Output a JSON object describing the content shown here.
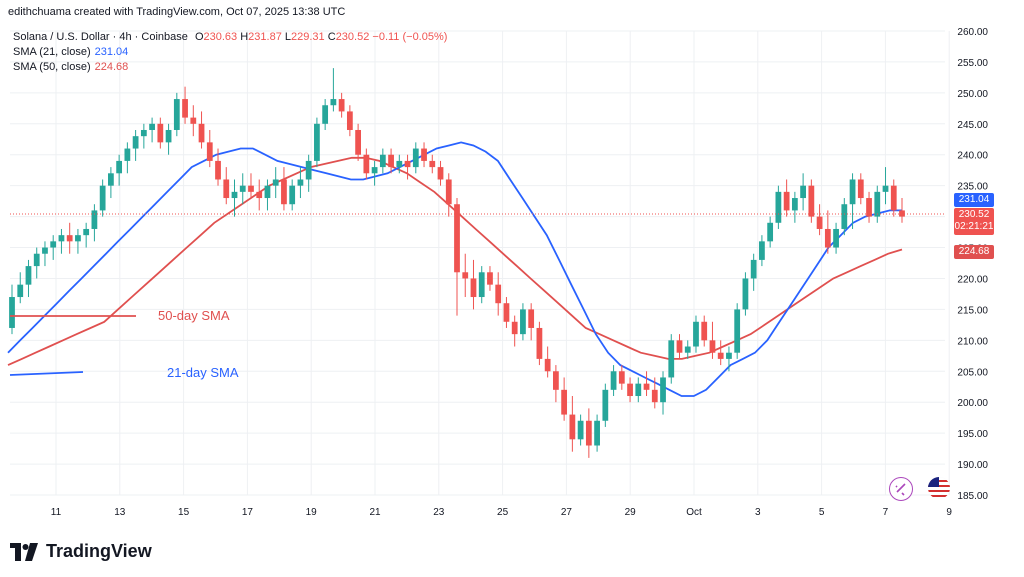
{
  "header": {
    "attribution": "edithchuama created with TradingView.com, Oct 07, 2025 13:38 UTC",
    "symbol": "Solana / U.S. Dollar · 4h · Coinbase",
    "ohlc": {
      "o_label": "O",
      "o": "230.63",
      "h_label": "H",
      "h": "231.87",
      "l_label": "L",
      "l": "229.31",
      "c_label": "C",
      "c": "230.52",
      "change": "−0.11 (−0.05%)"
    },
    "sma21_label": "SMA (21, close)",
    "sma21_value": "231.04",
    "sma50_label": "SMA (50, close)",
    "sma50_value": "224.68"
  },
  "annotations": {
    "sma50": "50-day SMA",
    "sma21": "21-day SMA"
  },
  "price_badges": {
    "sma21": "231.04",
    "last": "230.52",
    "countdown": "02:21:21",
    "sma50": "224.68"
  },
  "branding": {
    "logo_text": "TradingView"
  },
  "colors": {
    "up": "#26a69a",
    "down": "#ef5350",
    "sma21": "#2962ff",
    "sma50": "#e0504f",
    "badge_dark": "#131722",
    "text": "#131722",
    "grid": "#eef0f3",
    "axis_text": "#131722"
  },
  "icons": [
    "tradingview-logo-icon",
    "snapshot-sparkle-icon",
    "us-flag-icon"
  ],
  "chart_data": {
    "type": "candlestick",
    "title": "Solana / U.S. Dollar · 4h · Coinbase",
    "x_ticks": [
      "11",
      "13",
      "15",
      "17",
      "19",
      "21",
      "23",
      "25",
      "27",
      "29",
      "Oct",
      "3",
      "5",
      "7",
      "9"
    ],
    "y_ticks": [
      "260.00",
      "255.00",
      "250.00",
      "245.00",
      "240.00",
      "235.00",
      "230.00",
      "225.00",
      "220.00",
      "215.00",
      "210.00",
      "205.00",
      "200.00",
      "195.00",
      "190.00",
      "185.00"
    ],
    "ylim": [
      185,
      260
    ],
    "grid": true,
    "candles_ohlc": [
      [
        212,
        219,
        211,
        217
      ],
      [
        217,
        221,
        216,
        219
      ],
      [
        219,
        223,
        217,
        222
      ],
      [
        222,
        225,
        220,
        224
      ],
      [
        224,
        226,
        222,
        225
      ],
      [
        225,
        227,
        223,
        226
      ],
      [
        226,
        228,
        224,
        227
      ],
      [
        227,
        229,
        224,
        226
      ],
      [
        226,
        228,
        224,
        227
      ],
      [
        227,
        229,
        225,
        228
      ],
      [
        228,
        232,
        226,
        231
      ],
      [
        231,
        236,
        230,
        235
      ],
      [
        235,
        238,
        233,
        237
      ],
      [
        237,
        240,
        235,
        239
      ],
      [
        239,
        242,
        237,
        241
      ],
      [
        241,
        244,
        239,
        243
      ],
      [
        243,
        245,
        241,
        244
      ],
      [
        244,
        246,
        242,
        245
      ],
      [
        245,
        246,
        241,
        242
      ],
      [
        242,
        245,
        240,
        244
      ],
      [
        244,
        250,
        243,
        249
      ],
      [
        249,
        251,
        245,
        246
      ],
      [
        246,
        248,
        243,
        245
      ],
      [
        245,
        247,
        241,
        242
      ],
      [
        242,
        244,
        238,
        239
      ],
      [
        239,
        241,
        235,
        236
      ],
      [
        236,
        238,
        232,
        233
      ],
      [
        233,
        236,
        230,
        234
      ],
      [
        234,
        237,
        232,
        235
      ],
      [
        235,
        237,
        233,
        234
      ],
      [
        234,
        236,
        231,
        233
      ],
      [
        233,
        236,
        231,
        235
      ],
      [
        235,
        238,
        233,
        236
      ],
      [
        236,
        238,
        231,
        232
      ],
      [
        232,
        236,
        231,
        235
      ],
      [
        235,
        238,
        233,
        236
      ],
      [
        236,
        240,
        234,
        239
      ],
      [
        239,
        246,
        238,
        245
      ],
      [
        245,
        249,
        244,
        248
      ],
      [
        248,
        254,
        247,
        249
      ],
      [
        249,
        250,
        246,
        247
      ],
      [
        247,
        248,
        243,
        244
      ],
      [
        244,
        245,
        239,
        240
      ],
      [
        240,
        241,
        236,
        237
      ],
      [
        237,
        239,
        235,
        238
      ],
      [
        238,
        241,
        237,
        240
      ],
      [
        240,
        241,
        237,
        238
      ],
      [
        238,
        240,
        237,
        239
      ],
      [
        239,
        240,
        236,
        238
      ],
      [
        238,
        242,
        237,
        241
      ],
      [
        241,
        242,
        238,
        239
      ],
      [
        239,
        240,
        237,
        238
      ],
      [
        238,
        239,
        235,
        236
      ],
      [
        236,
        237,
        230,
        232
      ],
      [
        232,
        233,
        214,
        221
      ],
      [
        221,
        224,
        217,
        220
      ],
      [
        220,
        223,
        215,
        217
      ],
      [
        217,
        222,
        216,
        221
      ],
      [
        221,
        222,
        218,
        219
      ],
      [
        219,
        221,
        214,
        216
      ],
      [
        216,
        217,
        212,
        213
      ],
      [
        213,
        214,
        209,
        211
      ],
      [
        211,
        216,
        210,
        215
      ],
      [
        215,
        216,
        210,
        212
      ],
      [
        212,
        213,
        206,
        207
      ],
      [
        207,
        209,
        204,
        205
      ],
      [
        205,
        206,
        200,
        202
      ],
      [
        202,
        204,
        197,
        198
      ],
      [
        198,
        201,
        192,
        194
      ],
      [
        194,
        198,
        193,
        197
      ],
      [
        197,
        199,
        191,
        193
      ],
      [
        193,
        198,
        192,
        197
      ],
      [
        197,
        203,
        196,
        202
      ],
      [
        202,
        206,
        201,
        205
      ],
      [
        205,
        206,
        202,
        203
      ],
      [
        203,
        204,
        200,
        201
      ],
      [
        201,
        204,
        200,
        203
      ],
      [
        203,
        205,
        201,
        202
      ],
      [
        202,
        204,
        199,
        200
      ],
      [
        200,
        205,
        198,
        204
      ],
      [
        204,
        211,
        203,
        210
      ],
      [
        210,
        211,
        207,
        208
      ],
      [
        208,
        210,
        207,
        209
      ],
      [
        209,
        214,
        208,
        213
      ],
      [
        213,
        214,
        209,
        210
      ],
      [
        210,
        213,
        207,
        208
      ],
      [
        208,
        210,
        206,
        207
      ],
      [
        207,
        209,
        205,
        208
      ],
      [
        208,
        216,
        207,
        215
      ],
      [
        215,
        221,
        214,
        220
      ],
      [
        220,
        224,
        218,
        223
      ],
      [
        223,
        227,
        222,
        226
      ],
      [
        226,
        230,
        225,
        229
      ],
      [
        229,
        235,
        228,
        234
      ],
      [
        234,
        236,
        230,
        231
      ],
      [
        231,
        234,
        229,
        233
      ],
      [
        233,
        237,
        231,
        235
      ],
      [
        235,
        236,
        229,
        230
      ],
      [
        230,
        232,
        227,
        228
      ],
      [
        228,
        231,
        224,
        225
      ],
      [
        225,
        229,
        224,
        228
      ],
      [
        228,
        233,
        227,
        232
      ],
      [
        232,
        237,
        228,
        236
      ],
      [
        236,
        237,
        232,
        233
      ],
      [
        233,
        234,
        229,
        230
      ],
      [
        230,
        235,
        229,
        234
      ],
      [
        234,
        238,
        232,
        235
      ],
      [
        235,
        236,
        230,
        231
      ],
      [
        231,
        233,
        229,
        230
      ]
    ],
    "sma21_values": [
      208,
      210,
      212,
      214,
      216,
      218,
      220,
      222,
      224,
      226,
      228,
      230,
      232,
      234,
      236,
      238,
      239,
      240,
      240.5,
      241,
      241,
      240,
      239,
      238.5,
      238,
      237.5,
      237,
      236.5,
      236,
      236,
      236.5,
      237,
      238,
      239,
      240,
      241,
      241.5,
      242,
      241.5,
      240.5,
      239,
      236,
      233,
      230,
      227,
      223,
      219,
      215,
      211,
      208,
      206,
      205,
      204,
      203,
      202,
      201,
      201,
      202,
      204,
      206,
      207,
      208,
      210,
      213,
      216,
      219,
      222,
      225,
      227,
      229,
      230,
      230.5,
      231,
      231
    ],
    "sma50_values": [
      206,
      207,
      208,
      209,
      210,
      211,
      212,
      213,
      215,
      217,
      219,
      221,
      223,
      225,
      227,
      229,
      230.5,
      232,
      233.5,
      235,
      236,
      237,
      238,
      238.5,
      239,
      239.5,
      239.5,
      239,
      238,
      237,
      235.5,
      234,
      232,
      230,
      228,
      226,
      224,
      222,
      220,
      218,
      216,
      214,
      212,
      211,
      210,
      209,
      208,
      207.5,
      207,
      207,
      207.5,
      208,
      209,
      210,
      211,
      212.5,
      214,
      215.5,
      217,
      218.5,
      220,
      221,
      222,
      223,
      224,
      224.68
    ]
  }
}
